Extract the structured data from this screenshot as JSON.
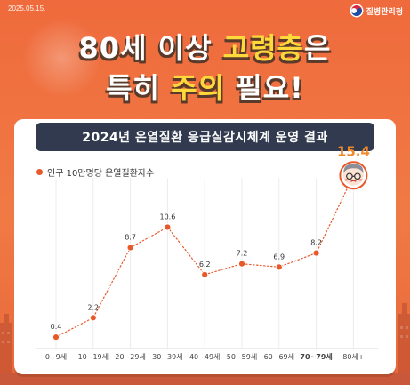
{
  "header": {
    "date": "2025.05.15.",
    "agency": "질병관리청",
    "headline_line1_pre": "80세 이상 ",
    "headline_line1_hl": "고령층",
    "headline_line1_post": "은",
    "headline_line2_pre": "특히 ",
    "headline_line2_hl": "주의",
    "headline_line2_post": " 필요!"
  },
  "colors": {
    "background": "#ef6a3c",
    "banner": "#313a4e",
    "line": "#e8592a",
    "highlight_value": "#f0882c",
    "headline_highlight": "#ffd93c"
  },
  "chart_data": {
    "type": "line",
    "title": "2024년 온열질환 응급실감시체계 운영 결과",
    "categories": [
      "0~9세",
      "10~19세",
      "20~29세",
      "30~39세",
      "40~49세",
      "50~59세",
      "60~69세",
      "70~79세",
      "80세+"
    ],
    "series": [
      {
        "name": "인구 10만명당 온열질환자수",
        "values": [
          0.4,
          2.2,
          8.7,
          10.6,
          6.2,
          7.2,
          6.9,
          8.2,
          15.4
        ]
      }
    ],
    "ylim": [
      0,
      16
    ],
    "grid": "vertical",
    "legend": "top-left",
    "highlight_index": 8,
    "marker_icon": "elderly-face-icon"
  }
}
